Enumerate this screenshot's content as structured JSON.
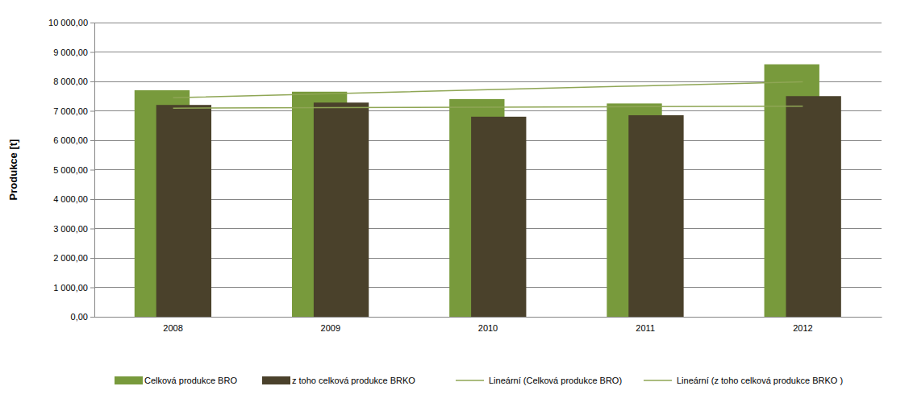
{
  "chart_data": {
    "type": "bar",
    "y_label": "Produkce [t]",
    "categories": [
      "2008",
      "2009",
      "2010",
      "2011",
      "2012"
    ],
    "series": [
      {
        "name": "Celková produkce BRO",
        "type": "bar",
        "color": "#789a3c",
        "values": [
          7700,
          7650,
          7400,
          7250,
          8580
        ]
      },
      {
        "name": "z toho  celková produkce BRKO",
        "type": "bar",
        "color": "#4a412b",
        "values": [
          7200,
          7280,
          6800,
          6850,
          7500
        ]
      },
      {
        "name": "Lineární (Celková produkce BRO)",
        "type": "line",
        "color": "#8fa655",
        "line_style": "solid",
        "values": [
          7444,
          7580,
          7716,
          7852,
          7988
        ]
      },
      {
        "name": "Lineární (z toho  celková produkce BRKO )",
        "type": "line",
        "color": "#8fa655",
        "line_style": "solid",
        "values": [
          7092,
          7109,
          7126,
          7143,
          7160
        ]
      }
    ],
    "ylim": [
      0,
      10000
    ],
    "yticks": [
      {
        "value": 0,
        "label": "0,00"
      },
      {
        "value": 1000,
        "label": "1 000,00"
      },
      {
        "value": 2000,
        "label": "2 000,00"
      },
      {
        "value": 3000,
        "label": "3 000,00"
      },
      {
        "value": 4000,
        "label": "4 000,00"
      },
      {
        "value": 5000,
        "label": "5 000,00"
      },
      {
        "value": 6000,
        "label": "6 000,00"
      },
      {
        "value": 7000,
        "label": "7 000,00"
      },
      {
        "value": 8000,
        "label": "8 000,00"
      },
      {
        "value": 9000,
        "label": "9 000,00"
      },
      {
        "value": 10000,
        "label": "10 000,00"
      }
    ],
    "grid": true,
    "legend": "bottom"
  }
}
